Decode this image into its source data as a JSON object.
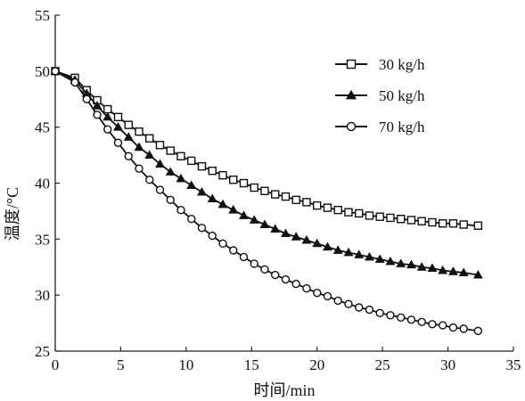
{
  "chart_data": {
    "type": "line",
    "title": "",
    "xlabel": "时间/min",
    "ylabel": "温度/°C",
    "xlim": [
      0,
      35
    ],
    "ylim": [
      25,
      55
    ],
    "xticks": [
      0,
      5,
      10,
      15,
      20,
      25,
      30,
      35
    ],
    "yticks": [
      25,
      30,
      35,
      40,
      45,
      50,
      55
    ],
    "grid": false,
    "legend_position": "top-right",
    "series": [
      {
        "name": "30 kg/h",
        "marker": "square",
        "x": [
          0,
          1.5,
          2.4,
          3.2,
          4.0,
          4.8,
          5.6,
          6.4,
          7.2,
          8.0,
          8.8,
          9.6,
          10.4,
          11.2,
          12.0,
          12.8,
          13.6,
          14.4,
          15.2,
          16.0,
          16.8,
          17.6,
          18.4,
          19.2,
          20.0,
          20.8,
          21.6,
          22.4,
          23.2,
          24.0,
          24.8,
          25.6,
          26.4,
          27.2,
          28.0,
          28.8,
          29.6,
          30.4,
          31.2,
          32.3
        ],
        "y": [
          50.0,
          49.4,
          48.3,
          47.4,
          46.6,
          45.9,
          45.2,
          44.6,
          44.0,
          43.4,
          42.9,
          42.4,
          42.0,
          41.5,
          41.1,
          40.7,
          40.3,
          40.0,
          39.6,
          39.3,
          39.0,
          38.8,
          38.5,
          38.3,
          38.0,
          37.8,
          37.6,
          37.4,
          37.3,
          37.1,
          37.0,
          36.9,
          36.8,
          36.7,
          36.6,
          36.5,
          36.4,
          36.4,
          36.3,
          36.2
        ]
      },
      {
        "name": "50 kg/h",
        "marker": "triangle",
        "x": [
          0,
          1.5,
          2.4,
          3.2,
          4.0,
          4.8,
          5.6,
          6.4,
          7.2,
          8.0,
          8.8,
          9.6,
          10.4,
          11.2,
          12.0,
          12.8,
          13.6,
          14.4,
          15.2,
          16.0,
          16.8,
          17.6,
          18.4,
          19.2,
          20.0,
          20.8,
          21.6,
          22.4,
          23.2,
          24.0,
          24.8,
          25.6,
          26.4,
          27.2,
          28.0,
          28.8,
          29.6,
          30.4,
          31.2,
          32.3
        ],
        "y": [
          50.0,
          49.2,
          48.0,
          46.9,
          45.9,
          45.0,
          44.1,
          43.2,
          42.5,
          41.7,
          41.0,
          40.4,
          39.8,
          39.2,
          38.6,
          38.1,
          37.6,
          37.1,
          36.7,
          36.3,
          35.9,
          35.5,
          35.2,
          34.9,
          34.6,
          34.3,
          34.0,
          33.8,
          33.6,
          33.4,
          33.2,
          33.0,
          32.8,
          32.7,
          32.5,
          32.4,
          32.2,
          32.1,
          32.0,
          31.8
        ]
      },
      {
        "name": "70 kg/h",
        "marker": "circle",
        "x": [
          0,
          1.5,
          2.4,
          3.2,
          4.0,
          4.8,
          5.6,
          6.4,
          7.2,
          8.0,
          8.8,
          9.6,
          10.4,
          11.2,
          12.0,
          12.8,
          13.6,
          14.4,
          15.2,
          16.0,
          16.8,
          17.6,
          18.4,
          19.2,
          20.0,
          20.8,
          21.6,
          22.4,
          23.2,
          24.0,
          24.8,
          25.6,
          26.4,
          27.2,
          28.0,
          28.8,
          29.6,
          30.4,
          31.2,
          32.3
        ],
        "y": [
          50.0,
          49.0,
          47.5,
          46.1,
          44.8,
          43.6,
          42.4,
          41.3,
          40.3,
          39.4,
          38.5,
          37.6,
          36.8,
          36.0,
          35.3,
          34.6,
          34.0,
          33.4,
          32.8,
          32.3,
          31.8,
          31.4,
          31.0,
          30.6,
          30.2,
          29.9,
          29.5,
          29.2,
          28.9,
          28.7,
          28.4,
          28.2,
          28.0,
          27.8,
          27.6,
          27.4,
          27.3,
          27.1,
          27.0,
          26.8
        ]
      }
    ]
  }
}
